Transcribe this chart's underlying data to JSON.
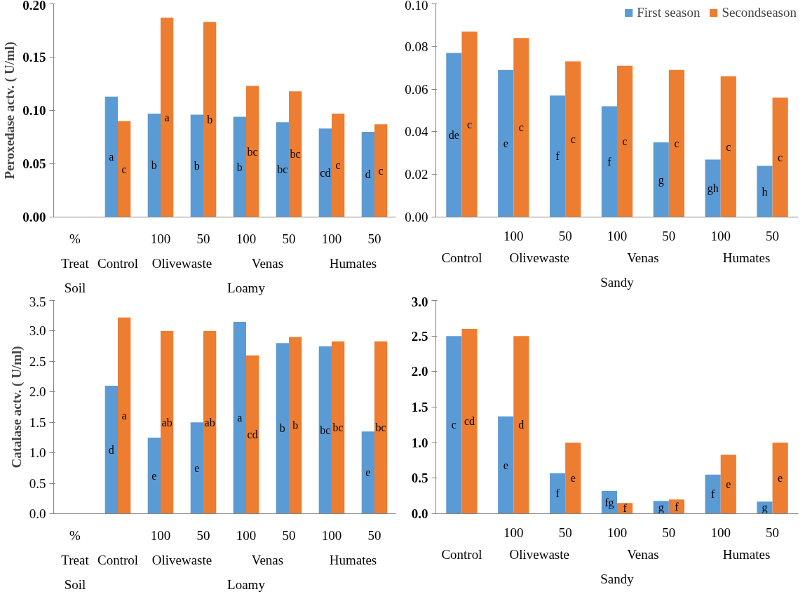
{
  "chart_data": [
    {
      "type": "bar",
      "ylabel": "Peroxedase actv. ( U/ml)",
      "categories": [
        "%",
        null,
        "100",
        "50",
        "100",
        "50",
        "100",
        "50"
      ],
      "series": [
        {
          "color": "#5b9bd5",
          "values": [
            null,
            0.113,
            0.097,
            0.096,
            0.094,
            0.089,
            0.083,
            0.08
          ],
          "value_labels": [
            null,
            "a",
            "b",
            "b",
            "b",
            "bc",
            "cd",
            "d"
          ]
        },
        {
          "color": "#ed7d31",
          "values": [
            null,
            0.09,
            0.187,
            0.183,
            0.123,
            0.118,
            0.097,
            0.087
          ],
          "value_labels": [
            null,
            "c",
            "a",
            "b",
            "bc",
            "bc",
            "c",
            "c"
          ]
        }
      ],
      "ylim": [
        0,
        0.2
      ],
      "yticks": [
        {
          "value": 0,
          "label": "0.00"
        },
        {
          "value": 0.05,
          "label": "0.05"
        },
        {
          "value": 0.1,
          "label": "0.10"
        },
        {
          "value": 0.15,
          "label": "0.15"
        },
        {
          "value": 0.2,
          "label": "0.20"
        }
      ],
      "annotations": [
        "Treat",
        "Control",
        "Olivewaste",
        "Venas",
        "Humates",
        "Soil",
        "Loamy"
      ]
    },
    {
      "type": "bar",
      "categories": [
        null,
        "100",
        "50",
        "100",
        "50",
        "100",
        "50"
      ],
      "series": [
        {
          "name": "First season",
          "color": "#5b9bd5",
          "values": [
            0.077,
            0.069,
            0.057,
            0.052,
            0.035,
            0.027,
            0.024
          ],
          "value_labels": [
            "de",
            "e",
            "f",
            "f",
            "g",
            "gh",
            "h"
          ]
        },
        {
          "name": "Secondseason",
          "color": "#ed7d31",
          "values": [
            0.087,
            0.084,
            0.073,
            0.071,
            0.069,
            0.066,
            0.056
          ],
          "value_labels": [
            "c",
            "c",
            "c",
            "c",
            "c",
            "c",
            "c"
          ]
        }
      ],
      "ylim": [
        0,
        0.1
      ],
      "yticks": [
        {
          "value": 0,
          "label": "0.00"
        },
        {
          "value": 0.02,
          "label": "0.02"
        },
        {
          "value": 0.04,
          "label": "0.04"
        },
        {
          "value": 0.06,
          "label": "0.06"
        },
        {
          "value": 0.08,
          "label": "0.08"
        },
        {
          "value": 0.1,
          "label": "0.10"
        }
      ],
      "legend": "top right",
      "annotations": [
        "Control",
        "Olivewaste",
        "Venas",
        "Humates",
        "Sandy"
      ]
    },
    {
      "type": "bar",
      "ylabel": "Catalase actv. ( U/ml)",
      "categories": [
        "%",
        null,
        "100",
        "50",
        "100",
        "50",
        "100",
        "50"
      ],
      "series": [
        {
          "color": "#5b9bd5",
          "values": [
            null,
            2.1,
            1.25,
            1.5,
            3.15,
            2.8,
            2.75,
            1.35
          ],
          "value_labels": [
            null,
            "d",
            "e",
            "e",
            "a",
            "b",
            "bc",
            "e"
          ]
        },
        {
          "color": "#ed7d31",
          "values": [
            null,
            3.22,
            3.0,
            3.0,
            2.6,
            2.9,
            2.83,
            2.83
          ],
          "value_labels": [
            null,
            "a",
            "ab",
            "ab",
            "cd",
            "b",
            "bc",
            "bc"
          ]
        }
      ],
      "ylim": [
        0,
        3.5
      ],
      "yticks": [
        {
          "value": 0,
          "label": "0.0"
        },
        {
          "value": 0.5,
          "label": "0.5"
        },
        {
          "value": 1,
          "label": "1.0"
        },
        {
          "value": 1.5,
          "label": "1.5"
        },
        {
          "value": 2,
          "label": "2.0"
        },
        {
          "value": 2.5,
          "label": "2.5"
        },
        {
          "value": 3,
          "label": "3.0"
        },
        {
          "value": 3.5,
          "label": "3.5"
        }
      ],
      "annotations": [
        "Treat",
        "Control",
        "Olivewaste",
        "Venas",
        "Humates",
        "Soil",
        "Loamy"
      ]
    },
    {
      "type": "bar",
      "categories": [
        null,
        "100",
        "50",
        "100",
        "50",
        "100",
        "50"
      ],
      "series": [
        {
          "color": "#5b9bd5",
          "values": [
            2.5,
            1.37,
            0.57,
            0.32,
            0.18,
            0.55,
            0.17
          ],
          "value_labels": [
            "c",
            "e",
            "f",
            "fg",
            "g",
            "f",
            "g"
          ]
        },
        {
          "color": "#ed7d31",
          "values": [
            2.6,
            2.5,
            1.0,
            0.15,
            0.2,
            0.83,
            1.0
          ],
          "value_labels": [
            "cd",
            "d",
            "e",
            "f",
            "f",
            "e",
            "e"
          ]
        }
      ],
      "ylim": [
        0,
        3
      ],
      "yticks": [
        {
          "value": 0,
          "label": "0.0"
        },
        {
          "value": 0.5,
          "label": "0.5"
        },
        {
          "value": 1,
          "label": "1.0"
        },
        {
          "value": 1.5,
          "label": "1.5"
        },
        {
          "value": 2,
          "label": "2.0"
        },
        {
          "value": 2.5,
          "label": "2.5"
        },
        {
          "value": 3,
          "label": "3.0"
        }
      ],
      "annotations": [
        "Control",
        "Olivewaste",
        "Venas",
        "Humates",
        "Sandy"
      ]
    }
  ]
}
